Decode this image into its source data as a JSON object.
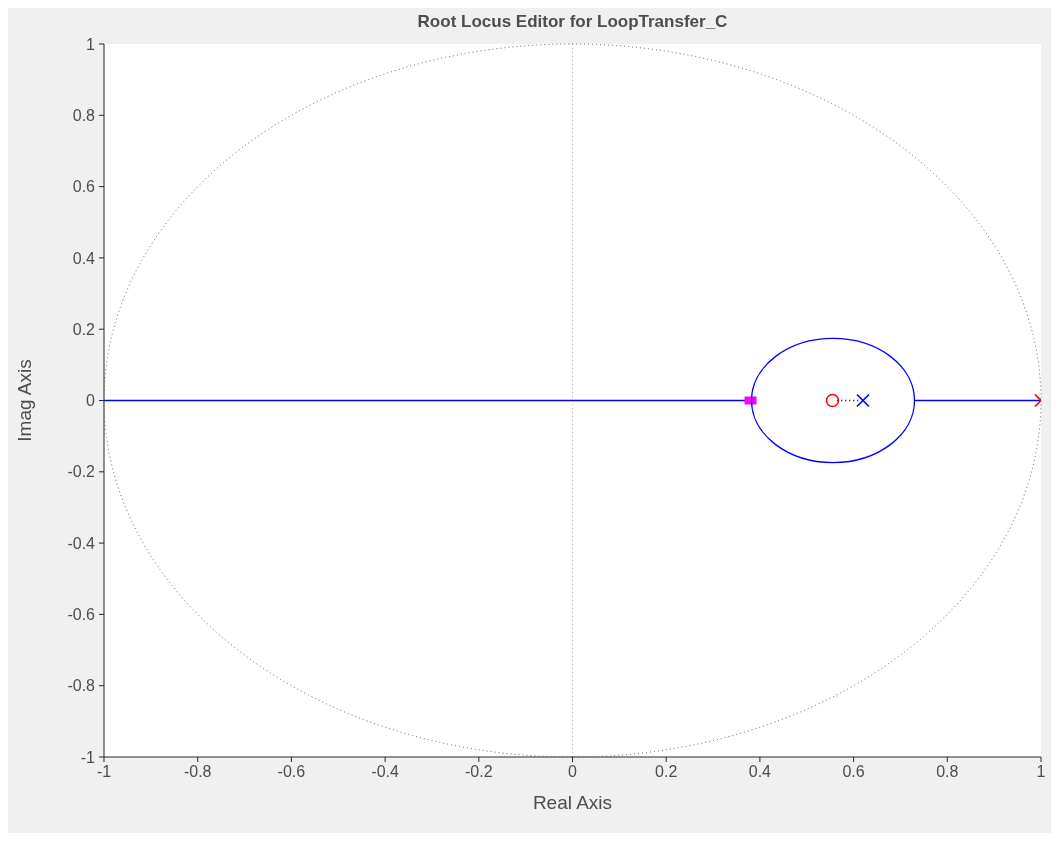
{
  "chart_data": {
    "type": "line",
    "title": "Root Locus Editor for LoopTransfer_C",
    "xlabel": "Real Axis",
    "ylabel": "Imag Axis",
    "xlim": [
      -1,
      1
    ],
    "ylim": [
      -1,
      1
    ],
    "xticks": [
      -1,
      -0.8,
      -0.6,
      -0.4,
      -0.2,
      0,
      0.2,
      0.4,
      0.6,
      0.8,
      1
    ],
    "yticks": [
      -1,
      -0.8,
      -0.6,
      -0.4,
      -0.2,
      0,
      0.2,
      0.4,
      0.6,
      0.8,
      1
    ],
    "grid": false,
    "ref_lines": [
      {
        "axis": "x",
        "value": 0,
        "color": "#b4b4b4",
        "line_style": "dotted"
      }
    ],
    "series": [
      {
        "color": "#0000ff",
        "line_style": "solid",
        "x": [
          -1,
          0.382
        ],
        "values": [
          0,
          0
        ]
      },
      {
        "color": "#0000ff",
        "line_style": "solid",
        "x": [
          0.73,
          1
        ],
        "values": [
          0,
          0
        ]
      },
      {
        "color": "#000000",
        "line_style": "dotted",
        "x": [
          0.565,
          0.61
        ],
        "values": [
          0,
          0
        ]
      },
      {
        "type": "scatter",
        "marker": "circle",
        "color": "#ff0000",
        "x": [
          0.555
        ],
        "values": [
          0
        ]
      },
      {
        "type": "scatter",
        "marker": "cross",
        "color": "#0000ff",
        "x": [
          0.62
        ],
        "values": [
          0
        ]
      },
      {
        "type": "scatter",
        "marker": "cross",
        "color": "#ff0000",
        "x": [
          1
        ],
        "values": [
          0
        ]
      },
      {
        "type": "scatter",
        "marker": "square",
        "color": "#ff00ff",
        "x": [
          0.38
        ],
        "values": [
          0
        ]
      }
    ]
  }
}
